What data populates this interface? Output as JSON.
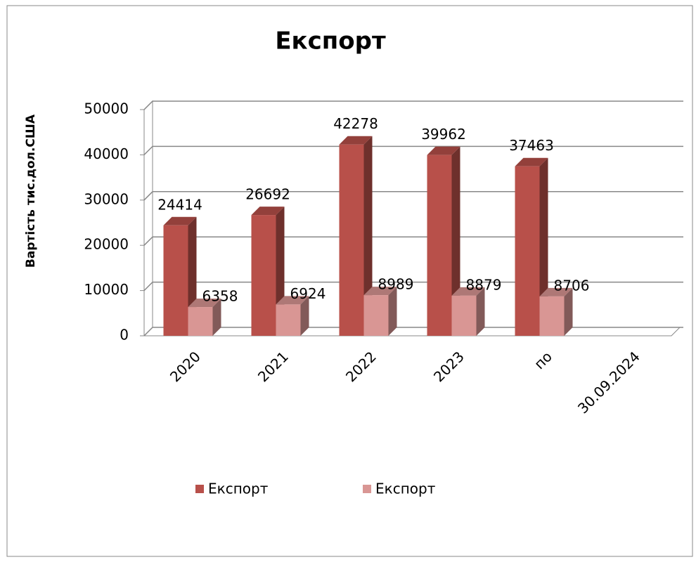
{
  "chart_data": {
    "type": "bar3d",
    "title": "Експорт",
    "y_label": "Вартість тис.дол.США",
    "categories": [
      "2020",
      "2021",
      "2022",
      "2023",
      "по",
      "30.09.2024"
    ],
    "series": [
      {
        "name": "Експорт",
        "color": "#b8504a",
        "values": [
          24414,
          26692,
          42278,
          39962,
          37463,
          null
        ]
      },
      {
        "name": "Експорт",
        "color": "#d99694",
        "values": [
          6358,
          6924,
          8989,
          8879,
          8706,
          null
        ]
      }
    ],
    "ylim": [
      0,
      50000
    ],
    "yticks": [
      0,
      10000,
      20000,
      30000,
      40000,
      50000
    ],
    "grid": true
  }
}
